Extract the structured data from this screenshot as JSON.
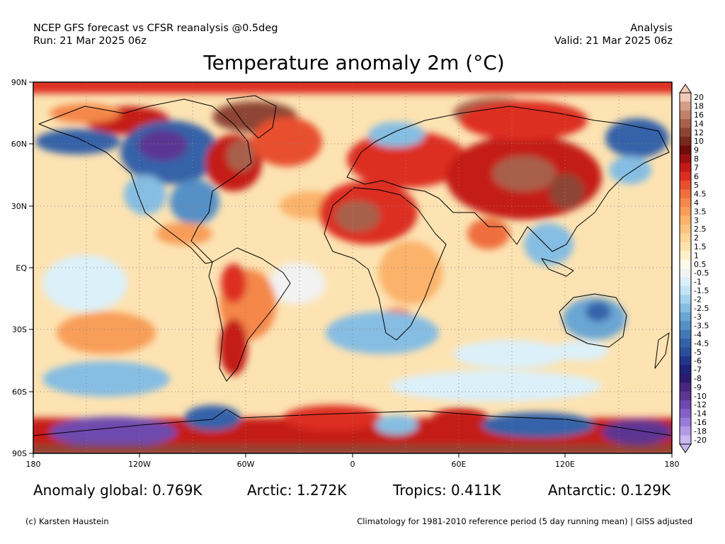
{
  "header": {
    "line1_left": "NCEP GFS forecast vs CFSR reanalysis @0.5deg",
    "line2_left": "Run: 21 Mar 2025 06z",
    "line1_right": "Analysis",
    "line2_right": "Valid: 21 Mar 2025 06z"
  },
  "title": "Temperature anomaly 2m (°C)",
  "map": {
    "lat_labels": [
      "90N",
      "60N",
      "30N",
      "EQ",
      "30S",
      "60S",
      "90S"
    ],
    "lon_labels": [
      "180",
      "120W",
      "60W",
      "0",
      "60E",
      "120E",
      "180"
    ],
    "icons": {
      "colorbar_top_arrow": "triangle-up",
      "colorbar_bottom_arrow": "triangle-down"
    }
  },
  "colorbar": {
    "levels": [
      "20",
      "18",
      "16",
      "14",
      "12",
      "10",
      "9",
      "8",
      "7",
      "6",
      "5",
      "4.5",
      "4",
      "3.5",
      "3",
      "2.5",
      "2",
      "1.5",
      "1",
      "0.5",
      "-0.5",
      "-1",
      "-1.5",
      "-2",
      "-2.5",
      "-3",
      "-3.5",
      "-4",
      "-4.5",
      "-5",
      "-6",
      "-7",
      "-8",
      "-9",
      "-10",
      "-12",
      "-14",
      "-16",
      "-18",
      "-20"
    ],
    "colors": [
      "#f2c9b9",
      "#d49e86",
      "#c0806a",
      "#a8604c",
      "#8e4434",
      "#78281c",
      "#6e0c0c",
      "#9a1010",
      "#c41a16",
      "#dd2e20",
      "#e8502e",
      "#ef6e3c",
      "#f4874a",
      "#f89e58",
      "#fbb26a",
      "#fcc47e",
      "#fdd494",
      "#fee2ac",
      "#fff0cc",
      "#fffbe8",
      "#f2f2f2",
      "#dcf0fa",
      "#c2e4f6",
      "#a4d2ee",
      "#86bde2",
      "#6aa6d4",
      "#5490c6",
      "#4278b6",
      "#3462a8",
      "#2a4e9c",
      "#22348c",
      "#1e2278",
      "#2a1a70",
      "#48287e",
      "#5c3692",
      "#6e48ae",
      "#8460c8",
      "#9a7cd8",
      "#b49ae6",
      "#cab8f0"
    ]
  },
  "stats": {
    "global": "Anomaly global: 0.769K",
    "arctic": "Arctic: 1.272K",
    "tropics": "Tropics: 0.411K",
    "antarctic": "Antarctic: 0.129K"
  },
  "footer": {
    "left": "(c) Karsten Haustein",
    "right": "Climatology for 1981-2010 reference period (5 day running mean) | GISS adjusted"
  }
}
